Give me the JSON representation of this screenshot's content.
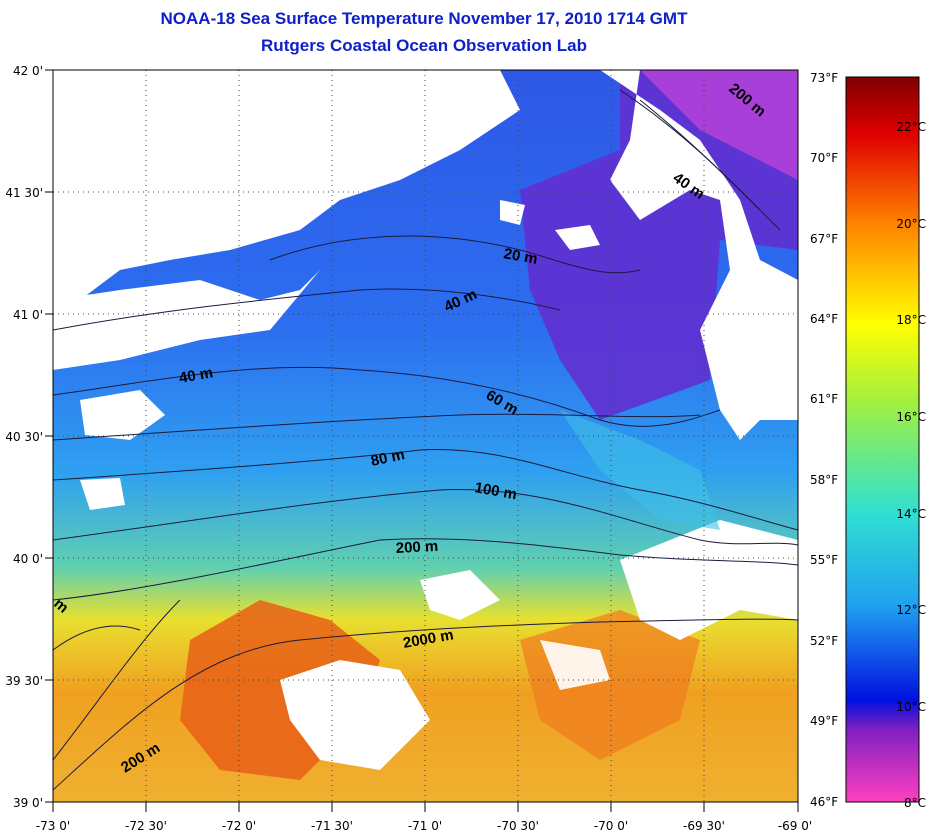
{
  "title": "NOAA-18 Sea Surface Temperature November 17, 2010 1714 GMT",
  "subtitle": "Rutgers Coastal Ocean Observation Lab",
  "map": {
    "lon_range": [
      -73,
      -69
    ],
    "lat_range": [
      39,
      42
    ],
    "lon_ticks": [
      "-73 0'",
      "-72 30'",
      "-72 0'",
      "-71 30'",
      "-71 0'",
      "-70 30'",
      "-70 0'",
      "-69 30'",
      "-69 0'"
    ],
    "lat_ticks": [
      "42 0'",
      "41 30'",
      "41 0'",
      "40 30'",
      "40 0'",
      "39 30'",
      "39 0'"
    ],
    "grid": true,
    "contour_labels": [
      "20 m",
      "40 m",
      "40 m",
      "60 m",
      "80 m",
      "100 m",
      "200 m",
      "2000 m",
      "200 m",
      "200 m",
      "40 m",
      "m"
    ]
  },
  "colorbar": {
    "min_c": 8,
    "max_c": 23,
    "fahrenheit_labels": [
      "73°F",
      "70°F",
      "67°F",
      "64°F",
      "61°F",
      "58°F",
      "55°F",
      "52°F",
      "49°F",
      "46°F"
    ],
    "celsius_labels": [
      "22°C",
      "20°C",
      "18°C",
      "16°C",
      "14°C",
      "12°C",
      "10°C",
      "8°C"
    ]
  },
  "colors": {
    "title": "#1020c8",
    "land": "#ffffff",
    "no_data": "#ffffff"
  }
}
